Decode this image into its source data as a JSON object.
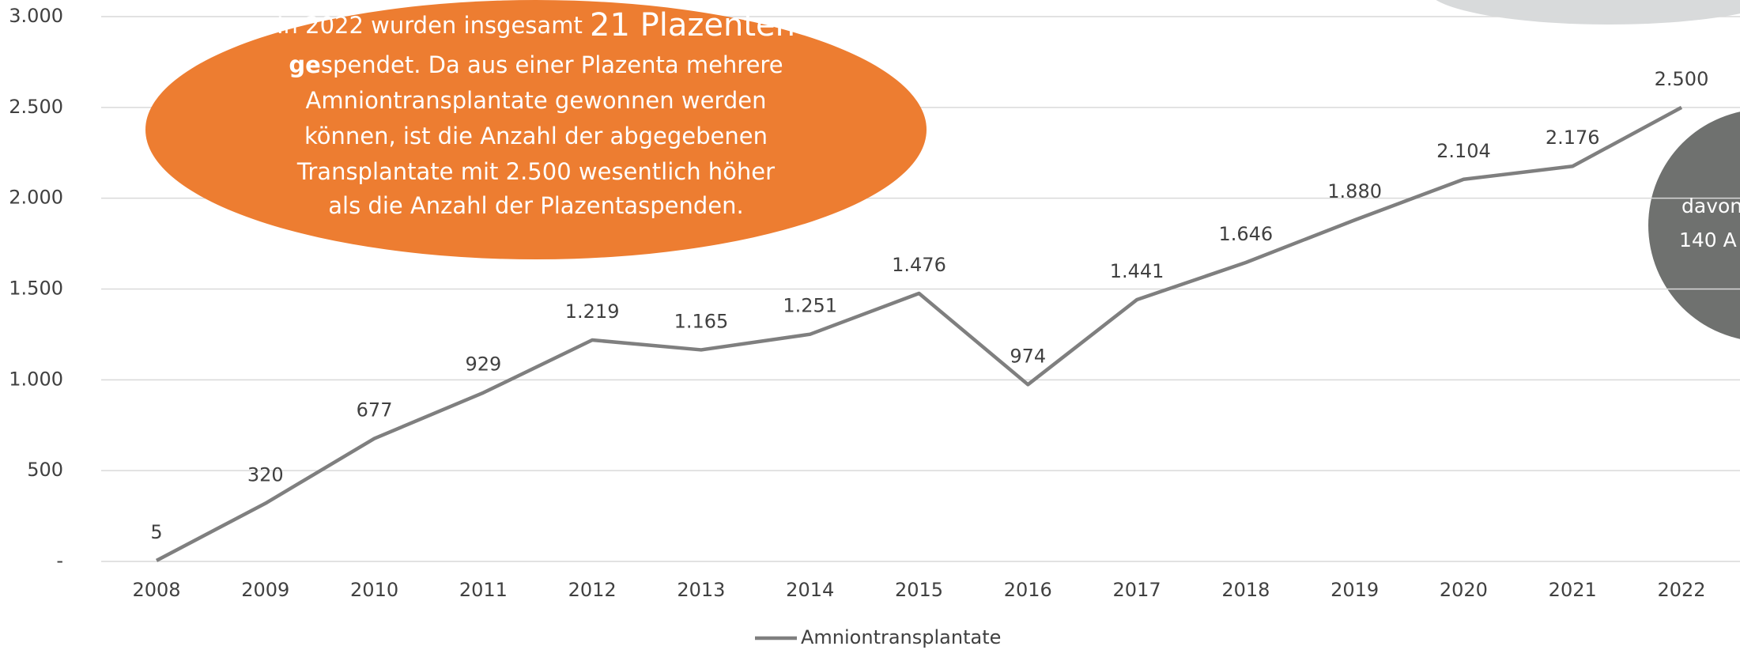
{
  "chart_data": {
    "type": "line",
    "categories": [
      "2008",
      "2009",
      "2010",
      "2011",
      "2012",
      "2013",
      "2014",
      "2015",
      "2016",
      "2017",
      "2018",
      "2019",
      "2020",
      "2021",
      "2022"
    ],
    "series": [
      {
        "name": "Amniontransplantate",
        "color": "#7f7f7f",
        "values": [
          5,
          320,
          677,
          929,
          1219,
          1165,
          1251,
          1476,
          974,
          1441,
          1646,
          1880,
          2104,
          2176,
          2500
        ],
        "value_labels": [
          "5",
          "320",
          "677",
          "929",
          "1.219",
          "1.165",
          "1.251",
          "1.476",
          "974",
          "1.441",
          "1.646",
          "1.880",
          "2.104",
          "2.176",
          "2.500"
        ]
      }
    ],
    "ylim": [
      0,
      3000
    ],
    "yticks": [
      {
        "value": 0,
        "label": "-"
      },
      500,
      {
        "value": 1000,
        "label": "1.000"
      },
      {
        "value": 1500,
        "label": "1.500"
      },
      {
        "value": 2000,
        "label": "2.000"
      },
      {
        "value": 2500,
        "label": "2.500"
      },
      {
        "value": 3000,
        "label": "3.000"
      }
    ],
    "grid": true,
    "legend": "bottom",
    "annotation": [
      [
        "In 2022 wurden insgesamt ",
        "21 Plazenten"
      ],
      [
        "ge",
        "spendet. Da aus einer Plazenta mehrere"
      ],
      [
        "Amniontransplantate gewonnen werden"
      ],
      [
        "können, ist die Anzahl der abgegebenen"
      ],
      [
        "Transplantate mit 2.500 wesentlich höher"
      ],
      [
        "als die Anzahl der Plazentaspenden."
      ]
    ],
    "annotation_right": [
      "davon",
      "140 A"
    ]
  }
}
